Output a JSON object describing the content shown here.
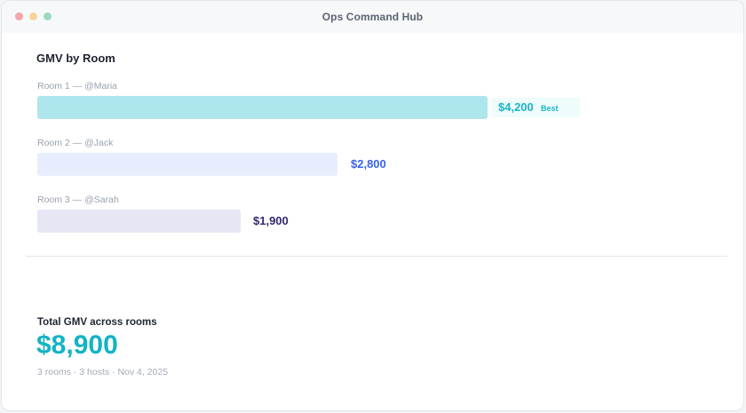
{
  "window": {
    "title": "Ops Command Hub"
  },
  "section": {
    "title": "GMV by Room"
  },
  "rooms": [
    {
      "label": "Room 1 — @Maria",
      "value": "$4,200",
      "gmv": 4200,
      "badge": "Best",
      "bar_color": "#aee6ee",
      "value_color": "#17b5c4"
    },
    {
      "label": "Room 2 — @Jack",
      "value": "$2,800",
      "gmv": 2800,
      "bar_color": "#e8edfe",
      "value_color": "#3a63e6"
    },
    {
      "label": "Room 3 — @Sarah",
      "value": "$1,900",
      "gmv": 1900,
      "bar_color": "#e7e6f4",
      "value_color": "#33296e"
    }
  ],
  "summary": {
    "label": "Total GMV across rooms",
    "total": "$8,900",
    "meta": "3 rooms · 3 hosts · Nov 4, 2025"
  },
  "colors": {
    "accent": "#12b3c4"
  }
}
